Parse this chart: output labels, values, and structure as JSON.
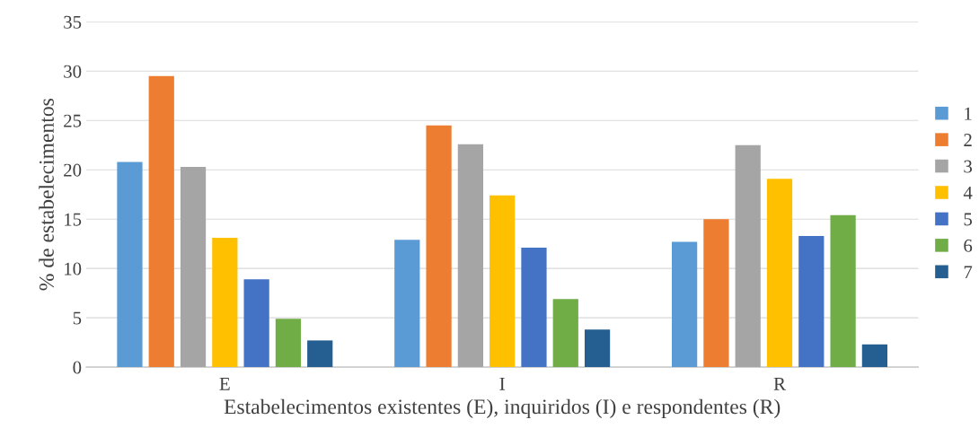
{
  "chart_data": {
    "type": "bar",
    "xlabel": "Estabelecimentos existentes (E), inquiridos (I) e respondentes (R)",
    "ylabel": "% de estabelecimentos",
    "categories": [
      "E",
      "I",
      "R"
    ],
    "series": [
      {
        "name": "1",
        "color": "#5b9bd5",
        "values": [
          20.8,
          12.9,
          12.7
        ]
      },
      {
        "name": "2",
        "color": "#ed7d31",
        "values": [
          29.5,
          24.5,
          15.0
        ]
      },
      {
        "name": "3",
        "color": "#a5a5a5",
        "values": [
          20.3,
          22.6,
          22.5
        ]
      },
      {
        "name": "4",
        "color": "#ffc000",
        "values": [
          13.1,
          17.4,
          19.1
        ]
      },
      {
        "name": "5",
        "color": "#4472c4",
        "values": [
          8.9,
          12.1,
          13.3
        ]
      },
      {
        "name": "6",
        "color": "#70ad47",
        "values": [
          4.9,
          6.9,
          15.4
        ]
      },
      {
        "name": "7",
        "color": "#255e91",
        "values": [
          2.7,
          3.8,
          2.3
        ]
      }
    ],
    "ylim": [
      0,
      35
    ],
    "yticks": [
      0,
      5,
      10,
      15,
      20,
      25,
      30,
      35
    ],
    "grid": "y",
    "legend": "right"
  }
}
